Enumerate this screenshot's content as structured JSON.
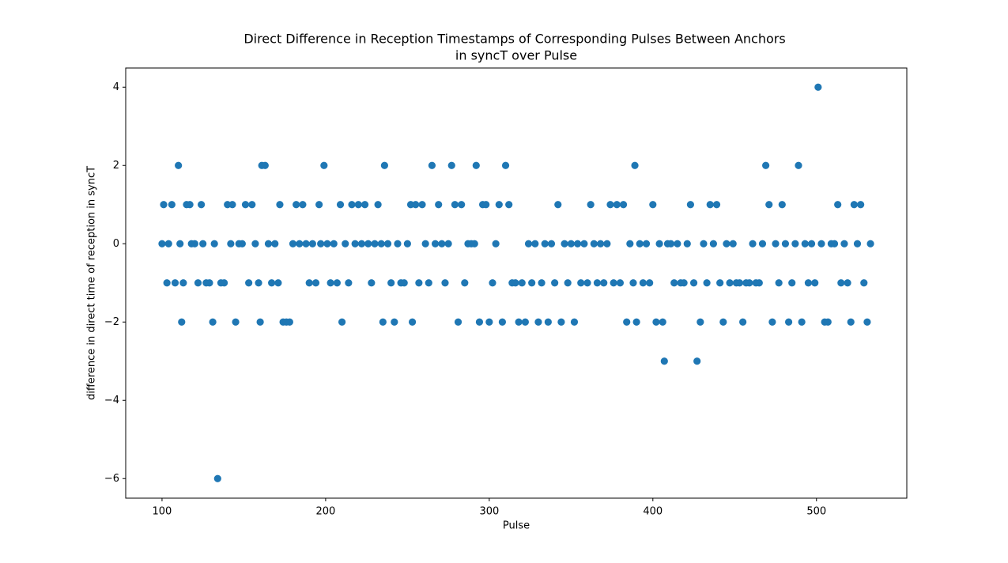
{
  "chart_data": {
    "type": "scatter",
    "title": [
      "Direct Difference in Reception Timestamps of Corresponding Pulses Between Anchors",
      "in syncT over Pulse"
    ],
    "xlabel": "Pulse",
    "ylabel": "difference in direct time of reception in syncT",
    "xlim": [
      77.8,
      555.2
    ],
    "ylim": [
      -6.5,
      4.49
    ],
    "xticks": [
      100,
      200,
      300,
      400,
      500
    ],
    "yticks": [
      {
        "value": -6,
        "label": "−6"
      },
      {
        "value": -4,
        "label": "−4"
      },
      {
        "value": -2,
        "label": "−2"
      },
      0,
      2,
      4
    ],
    "grid": false,
    "color": "#1f77b4",
    "x": [
      100,
      101,
      103,
      104,
      106,
      108,
      110,
      111,
      112,
      113,
      115,
      117,
      118,
      120,
      122,
      124,
      125,
      127,
      129,
      131,
      132,
      134,
      136,
      138,
      140,
      142,
      143,
      145,
      147,
      149,
      151,
      153,
      155,
      157,
      159,
      160,
      161,
      163,
      165,
      167,
      169,
      171,
      172,
      174,
      176,
      178,
      180,
      182,
      184,
      186,
      188,
      190,
      192,
      194,
      196,
      197,
      199,
      201,
      203,
      205,
      207,
      209,
      210,
      212,
      214,
      216,
      218,
      220,
      222,
      224,
      226,
      228,
      230,
      232,
      234,
      235,
      236,
      238,
      240,
      242,
      244,
      246,
      248,
      250,
      252,
      253,
      255,
      257,
      259,
      261,
      263,
      265,
      267,
      269,
      271,
      273,
      275,
      277,
      279,
      281,
      283,
      285,
      287,
      289,
      291,
      292,
      294,
      296,
      298,
      300,
      302,
      304,
      306,
      308,
      310,
      312,
      314,
      316,
      318,
      320,
      322,
      324,
      326,
      328,
      330,
      332,
      334,
      336,
      338,
      340,
      342,
      344,
      346,
      348,
      350,
      352,
      354,
      356,
      358,
      360,
      362,
      364,
      366,
      368,
      370,
      372,
      374,
      376,
      378,
      380,
      382,
      384,
      386,
      388,
      389,
      390,
      392,
      394,
      396,
      398,
      400,
      402,
      404,
      406,
      407,
      409,
      411,
      413,
      415,
      417,
      419,
      421,
      423,
      425,
      427,
      429,
      431,
      433,
      435,
      437,
      439,
      441,
      443,
      445,
      447,
      449,
      451,
      453,
      455,
      457,
      459,
      461,
      463,
      465,
      467,
      469,
      471,
      473,
      475,
      477,
      479,
      481,
      483,
      485,
      487,
      489,
      491,
      493,
      495,
      497,
      499,
      501,
      503,
      505,
      507,
      509,
      511,
      513,
      515,
      517,
      519,
      521,
      523,
      525,
      527,
      529,
      531,
      533
    ],
    "values": [
      0,
      1,
      -1,
      0,
      1,
      -1,
      2,
      0,
      -2,
      -1,
      1,
      1,
      0,
      0,
      -1,
      1,
      0,
      -1,
      -1,
      -2,
      0,
      -6,
      -1,
      -1,
      1,
      0,
      1,
      -2,
      0,
      0,
      1,
      -1,
      1,
      0,
      -1,
      -2,
      2,
      2,
      0,
      -1,
      0,
      -1,
      1,
      -2,
      -2,
      -2,
      0,
      1,
      0,
      1,
      0,
      -1,
      0,
      -1,
      1,
      0,
      2,
      0,
      -1,
      0,
      -1,
      1,
      -2,
      0,
      -1,
      1,
      0,
      1,
      0,
      1,
      0,
      -1,
      0,
      1,
      0,
      -2,
      2,
      0,
      -1,
      -2,
      0,
      -1,
      -1,
      0,
      1,
      -2,
      1,
      -1,
      1,
      0,
      -1,
      2,
      0,
      1,
      0,
      -1,
      0,
      2,
      1,
      -2,
      1,
      -1,
      0,
      0,
      0,
      2,
      -2,
      1,
      1,
      -2,
      -1,
      0,
      1,
      -2,
      2,
      1,
      -1,
      -1,
      -2,
      -1,
      -2,
      0,
      -1,
      0,
      -2,
      -1,
      0,
      -2,
      0,
      -1,
      1,
      -2,
      0,
      -1,
      0,
      -2,
      0,
      -1,
      0,
      -1,
      1,
      0,
      -1,
      0,
      -1,
      0,
      1,
      -1,
      1,
      -1,
      1,
      -2,
      0,
      -1,
      2,
      -2,
      0,
      -1,
      0,
      -1,
      1,
      -2,
      0,
      -2,
      -3,
      0,
      0,
      -1,
      0,
      -1,
      -1,
      0,
      1,
      -1,
      -3,
      -2,
      0,
      -1,
      1,
      0,
      1,
      -1,
      -2,
      0,
      -1,
      0,
      -1,
      -1,
      -2,
      -1,
      -1,
      0,
      -1,
      -1,
      0,
      2,
      1,
      -2,
      0,
      -1,
      1,
      0,
      -2,
      -1,
      0,
      2,
      -2,
      0,
      -1,
      0,
      -1,
      4,
      0,
      -2,
      -2,
      0,
      0,
      1,
      -1,
      0,
      -1,
      -2,
      1,
      0,
      1,
      -1,
      -2,
      0
    ]
  }
}
